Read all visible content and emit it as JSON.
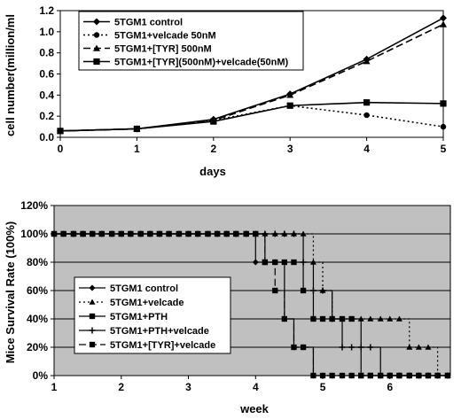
{
  "chart_data": [
    {
      "type": "line",
      "title": "",
      "xlabel": "days",
      "ylabel": "cell number(million/ml",
      "xlim": [
        0,
        5
      ],
      "ylim": [
        0,
        1.2
      ],
      "xticks": [
        "0",
        "1",
        "2",
        "3",
        "4",
        "5"
      ],
      "yticks": [
        "0.0",
        "0.2",
        "0.4",
        "0.6",
        "0.8",
        "1.0",
        "1.2"
      ],
      "grid": false,
      "legend_position": "top-left",
      "x": [
        0,
        1,
        2,
        3,
        4,
        5
      ],
      "series": [
        {
          "name": "5TGM1 control",
          "values": [
            0.06,
            0.08,
            0.17,
            0.41,
            0.74,
            1.13
          ],
          "marker": "diamond",
          "dash": "solid"
        },
        {
          "name": "5TGM1+velcade 50nM",
          "values": [
            0.06,
            0.08,
            0.16,
            0.3,
            0.21,
            0.1
          ],
          "marker": "circle",
          "dash": "dotted"
        },
        {
          "name": "5TGM1+[TYR] 500nM",
          "values": [
            0.06,
            0.08,
            0.16,
            0.4,
            0.72,
            1.07
          ],
          "marker": "triangle",
          "dash": "dashed"
        },
        {
          "name": "5TGM1+[TYR](500nM)+velcade(50nM)",
          "values": [
            0.06,
            0.08,
            0.15,
            0.3,
            0.33,
            0.32
          ],
          "marker": "square",
          "dash": "solid"
        }
      ]
    },
    {
      "type": "line",
      "title": "",
      "xlabel": "week",
      "ylabel": "Mice Survival Rate (100%)",
      "xlim": [
        1,
        6.9
      ],
      "ylim": [
        0,
        120
      ],
      "xticks": [
        "1",
        "2",
        "3",
        "4",
        "5",
        "6"
      ],
      "yticks": [
        "0%",
        "20%",
        "40%",
        "60%",
        "80%",
        "100%",
        "120%"
      ],
      "grid": true,
      "background": "#c0c0c0",
      "legend_position": "bottom-left",
      "x": [
        1.0,
        1.14,
        1.29,
        1.43,
        1.57,
        1.71,
        1.86,
        2.0,
        2.14,
        2.29,
        2.43,
        2.57,
        2.71,
        2.86,
        3.0,
        3.14,
        3.29,
        3.43,
        3.57,
        3.71,
        3.86,
        4.0,
        4.14,
        4.29,
        4.43,
        4.57,
        4.71,
        4.86,
        5.0,
        5.14,
        5.29,
        5.43,
        5.57,
        5.71,
        5.86,
        6.0,
        6.14,
        6.29,
        6.43,
        6.57,
        6.71,
        6.86
      ],
      "series": [
        {
          "name": "5TGM1 control",
          "marker": "diamond",
          "dash": "solid",
          "values": [
            100,
            100,
            100,
            100,
            100,
            100,
            100,
            100,
            100,
            100,
            100,
            100,
            100,
            100,
            100,
            100,
            100,
            100,
            100,
            100,
            100,
            80,
            80,
            80,
            40,
            20,
            20,
            0,
            0,
            0,
            0,
            0,
            0,
            0,
            0,
            0,
            0,
            0,
            0,
            0,
            0,
            0
          ]
        },
        {
          "name": "5TGM1+velcade",
          "marker": "triangle",
          "dash": "dotted",
          "values": [
            100,
            100,
            100,
            100,
            100,
            100,
            100,
            100,
            100,
            100,
            100,
            100,
            100,
            100,
            100,
            100,
            100,
            100,
            100,
            100,
            100,
            100,
            100,
            100,
            100,
            100,
            100,
            80,
            60,
            40,
            40,
            40,
            40,
            40,
            40,
            40,
            40,
            20,
            20,
            20,
            0,
            0
          ]
        },
        {
          "name": "5TGM1+PTH",
          "marker": "square",
          "dash": "solid",
          "values": [
            100,
            100,
            100,
            100,
            100,
            100,
            100,
            100,
            100,
            100,
            100,
            100,
            100,
            100,
            100,
            100,
            100,
            100,
            100,
            100,
            100,
            100,
            80,
            80,
            80,
            80,
            60,
            40,
            40,
            40,
            40,
            40,
            0,
            0,
            0,
            0,
            0,
            0,
            0,
            0,
            0,
            0
          ]
        },
        {
          "name": "5TGM1+PTH+velcade",
          "marker": "plus",
          "dash": "solid",
          "values": [
            100,
            100,
            100,
            100,
            100,
            100,
            100,
            100,
            100,
            100,
            100,
            100,
            100,
            100,
            100,
            100,
            100,
            100,
            100,
            100,
            100,
            100,
            100,
            100,
            100,
            100,
            80,
            60,
            60,
            40,
            20,
            20,
            20,
            20,
            0,
            0,
            0,
            0,
            0,
            0,
            0,
            0
          ]
        },
        {
          "name": "5TGM1+[TYR]+velcade",
          "marker": "square",
          "dash": "dashed",
          "values": [
            100,
            100,
            100,
            100,
            100,
            100,
            100,
            100,
            100,
            100,
            100,
            100,
            100,
            100,
            100,
            100,
            100,
            100,
            100,
            100,
            100,
            100,
            80,
            60,
            40,
            20,
            20,
            0,
            0,
            0,
            0,
            0,
            0,
            0,
            0,
            0,
            0,
            0,
            0,
            0,
            0,
            0
          ]
        }
      ]
    }
  ]
}
